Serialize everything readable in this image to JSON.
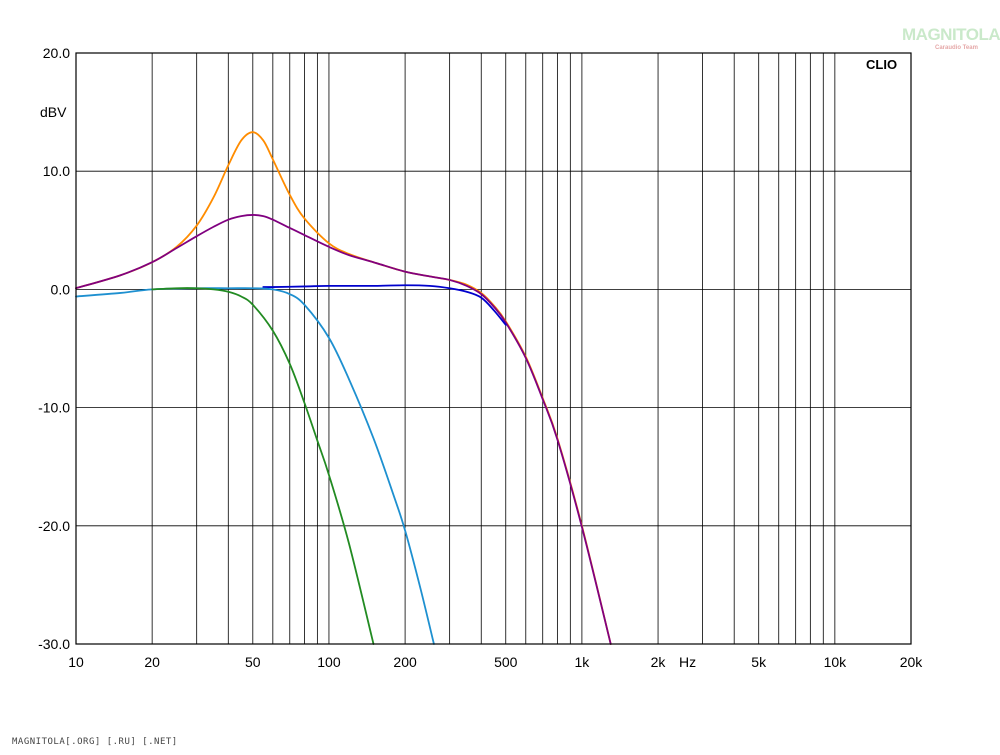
{
  "chart_data": {
    "type": "line",
    "title": "",
    "xlabel": "",
    "ylabel": "dBV",
    "x_unit_label": "Hz",
    "x_scale": "log",
    "xlim": [
      10,
      20000
    ],
    "ylim": [
      -30,
      20
    ],
    "grid": true,
    "x_tick_labels": [
      "10",
      "20",
      "50",
      "100",
      "200",
      "500",
      "1k",
      "2k",
      "5k",
      "10k",
      "20k"
    ],
    "y_tick_labels": [
      "20.0",
      "10.0",
      "0.0",
      "-10.0",
      "-20.0",
      "-30.0"
    ],
    "series": [
      {
        "color": "#ff8c00",
        "x": [
          10,
          15,
          20,
          25,
          30,
          35,
          40,
          45,
          50,
          55,
          60,
          70,
          80,
          100,
          120,
          150,
          200,
          250,
          300,
          350,
          400,
          450,
          500,
          600,
          700,
          800,
          1000,
          1300
        ],
        "y": [
          0.1,
          1.2,
          2.3,
          3.6,
          5.4,
          7.8,
          10.5,
          12.6,
          13.3,
          12.6,
          11.0,
          8.0,
          6.0,
          3.9,
          3.0,
          2.3,
          1.5,
          1.1,
          0.8,
          0.4,
          -0.3,
          -1.4,
          -2.7,
          -5.7,
          -9.2,
          -12.6,
          -20.0,
          -30.0
        ]
      },
      {
        "color": "#800080",
        "x": [
          10,
          15,
          20,
          25,
          30,
          35,
          40,
          45,
          50,
          55,
          60,
          70,
          80,
          100,
          120,
          150,
          200,
          250,
          300,
          350,
          400,
          450,
          500,
          600,
          700,
          800,
          1000,
          1300
        ],
        "y": [
          0.1,
          1.2,
          2.3,
          3.5,
          4.5,
          5.3,
          5.9,
          6.2,
          6.3,
          6.2,
          5.9,
          5.2,
          4.6,
          3.6,
          2.9,
          2.3,
          1.5,
          1.1,
          0.8,
          0.3,
          -0.4,
          -1.5,
          -2.8,
          -5.8,
          -9.3,
          -12.7,
          -20.1,
          -30.0
        ]
      },
      {
        "color": "#0000cc",
        "x": [
          55,
          60,
          80,
          100,
          150,
          200,
          250,
          300,
          350,
          400,
          450,
          500
        ],
        "y": [
          0.2,
          0.2,
          0.25,
          0.3,
          0.3,
          0.35,
          0.3,
          0.1,
          -0.2,
          -0.7,
          -1.8,
          -3.0
        ]
      },
      {
        "color": "#1e90d0",
        "x": [
          10,
          15,
          20,
          30,
          40,
          50,
          60,
          70,
          80,
          100,
          120,
          150,
          180,
          200,
          230,
          260
        ],
        "y": [
          -0.6,
          -0.3,
          0.0,
          0.1,
          0.1,
          0.1,
          0.0,
          -0.4,
          -1.3,
          -4.1,
          -7.6,
          -12.6,
          -17.4,
          -20.4,
          -25.3,
          -30.0
        ]
      },
      {
        "color": "#228b22",
        "x": [
          20,
          25,
          30,
          35,
          40,
          45,
          50,
          60,
          70,
          80,
          90,
          100,
          120,
          150
        ],
        "y": [
          0.0,
          0.1,
          0.1,
          0.0,
          -0.2,
          -0.6,
          -1.3,
          -3.5,
          -6.3,
          -9.6,
          -12.8,
          -15.7,
          -21.5,
          -30.0
        ]
      }
    ]
  },
  "brand_label": "CLIO",
  "watermark": {
    "logo_text": "MAGNITOLA",
    "logo_subtext": "Caraudio Team",
    "footer_text": "MAGNITOLA[.ORG] [.RU] [.NET]"
  }
}
